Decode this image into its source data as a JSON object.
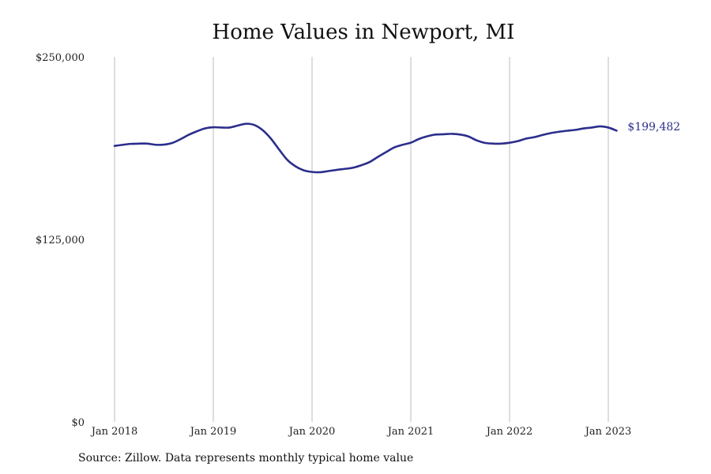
{
  "chart_data": {
    "type": "line",
    "title": "Home Values in Newport, MI",
    "xlabel": "",
    "ylabel": "",
    "ylim": [
      0,
      250000
    ],
    "y_ticks": [
      0,
      125000,
      250000
    ],
    "y_tick_labels": [
      "$0",
      "$125,000",
      "$250,000"
    ],
    "x_tick_labels": [
      "Jan 2018",
      "Jan 2019",
      "Jan 2020",
      "Jan 2021",
      "Jan 2022",
      "Jan 2023"
    ],
    "x_tick_dates": [
      "2018-01",
      "2019-01",
      "2020-01",
      "2021-01",
      "2022-01",
      "2023-01"
    ],
    "grid": "vertical",
    "series": [
      {
        "color": "#2b2e8c",
        "end_label": "$199,482",
        "x": [
          "2018-01",
          "2018-02",
          "2018-03",
          "2018-04",
          "2018-05",
          "2018-06",
          "2018-07",
          "2018-08",
          "2018-09",
          "2018-10",
          "2018-11",
          "2018-12",
          "2019-01",
          "2019-02",
          "2019-03",
          "2019-04",
          "2019-05",
          "2019-06",
          "2019-07",
          "2019-08",
          "2019-09",
          "2019-10",
          "2019-11",
          "2019-12",
          "2020-01",
          "2020-02",
          "2020-03",
          "2020-04",
          "2020-05",
          "2020-06",
          "2020-07",
          "2020-08",
          "2020-09",
          "2020-10",
          "2020-11",
          "2020-12",
          "2021-01",
          "2021-02",
          "2021-03",
          "2021-04",
          "2021-05",
          "2021-06",
          "2021-07",
          "2021-08",
          "2021-09",
          "2021-10",
          "2021-11",
          "2021-12",
          "2022-01",
          "2022-02",
          "2022-03",
          "2022-04",
          "2022-05",
          "2022-06",
          "2022-07",
          "2022-08",
          "2022-09",
          "2022-10",
          "2022-11",
          "2022-12",
          "2023-01",
          "2023-02"
        ],
        "values": [
          189000,
          189800,
          190400,
          190600,
          190600,
          189800,
          189900,
          191000,
          193600,
          196600,
          199000,
          201000,
          201800,
          201600,
          201600,
          203000,
          204200,
          203300,
          199800,
          194000,
          186500,
          179400,
          175000,
          172300,
          171200,
          171000,
          171800,
          172600,
          173300,
          174100,
          175800,
          178000,
          181500,
          184800,
          188000,
          189800,
          191200,
          193800,
          195600,
          196800,
          197000,
          197300,
          196800,
          195500,
          192800,
          191100,
          190600,
          190600,
          191200,
          192300,
          194000,
          195000,
          196500,
          197800,
          198700,
          199400,
          200000,
          201000,
          201600,
          202400,
          201600,
          199482
        ]
      }
    ]
  },
  "source_note": "Source: Zillow. Data represents monthly typical home value"
}
